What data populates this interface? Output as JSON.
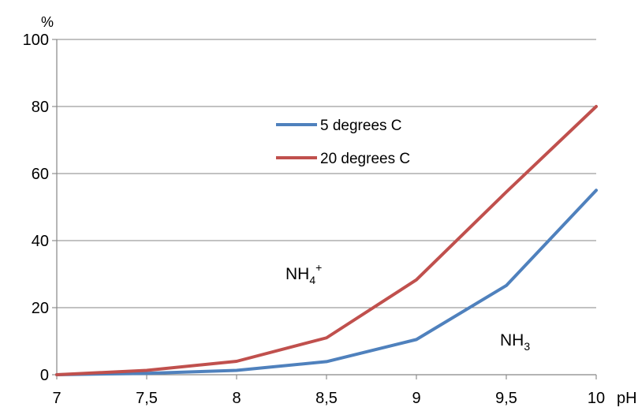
{
  "chart_data": {
    "type": "line",
    "x": [
      7,
      7.5,
      8,
      8.5,
      9,
      9.5,
      10
    ],
    "x_tick_labels": [
      "7",
      "7,5",
      "8",
      "8,5",
      "9",
      "9,5",
      "10"
    ],
    "y_ticks": [
      0,
      20,
      40,
      60,
      80,
      100
    ],
    "y_tick_labels": [
      "0",
      "20",
      "40",
      "60",
      "80",
      "100"
    ],
    "xlim": [
      7,
      10
    ],
    "ylim": [
      0,
      100
    ],
    "x_unit": "pH",
    "y_unit": "%",
    "grid": "horizontal",
    "legend_position": "upper-center",
    "series": [
      {
        "name": "5 degrees C",
        "color": "#4F81BD",
        "values": [
          0,
          0.4,
          1.3,
          3.9,
          10.5,
          26.6,
          55
        ]
      },
      {
        "name": "20 degrees C",
        "color": "#C0504D",
        "values": [
          0,
          1.3,
          4,
          11,
          28.3,
          54.5,
          80
        ]
      }
    ],
    "annotations": {
      "nh4": {
        "base": "NH",
        "sub": "4",
        "sup": "+"
      },
      "nh3": {
        "base": "NH",
        "sub": "3"
      }
    }
  }
}
